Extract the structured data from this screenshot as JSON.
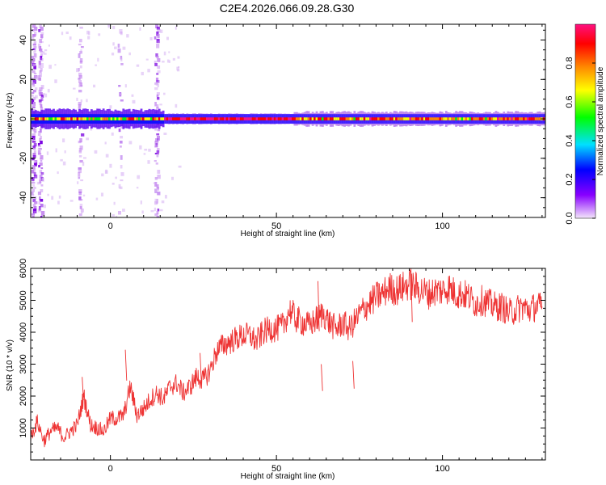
{
  "title": "C2E4.2026.066.09.28.G30",
  "chart_data": [
    {
      "type": "heatmap",
      "xlabel": "Height of straight line (km)",
      "ylabel": "Frequency (Hz)",
      "xlim": [
        -24,
        131
      ],
      "ylim": [
        -50,
        48
      ],
      "xticks": [
        0,
        50,
        100
      ],
      "yticks": [
        -40,
        -20,
        0,
        20,
        40
      ],
      "colorbar": {
        "label": "Normalized spectral amplitude",
        "range": [
          0,
          1
        ],
        "ticks": [
          "0.0",
          "0.2",
          "0.4",
          "0.6",
          "0.8"
        ],
        "colormap": [
          "#f0e0f8",
          "#8800ff",
          "#0000ff",
          "#00e0ff",
          "#00ff00",
          "#ffff00",
          "#ff8800",
          "#ff0000",
          "#ff1080"
        ]
      },
      "features": {
        "main_band_center_hz": 0,
        "main_band_halfwidth_hz": 2,
        "noisy_columns_km": [
          -23,
          -21,
          -9,
          3,
          14
        ]
      }
    },
    {
      "type": "line",
      "xlabel": "Height of straight line (km)",
      "ylabel": "SNR (10 * v/v)",
      "xlim": [
        -24,
        131
      ],
      "ylim": [
        0,
        6000
      ],
      "xticks": [
        0,
        50,
        100
      ],
      "yticks": [
        1000,
        2000,
        3000,
        4000,
        5000,
        6000
      ],
      "color": "#ee3333",
      "series": [
        {
          "x": [
            -24,
            -22,
            -20,
            -18,
            -16,
            -14,
            -12,
            -10,
            -8,
            -6,
            -4,
            -2,
            0,
            2,
            4,
            6,
            8,
            10,
            12,
            14,
            16,
            18,
            20,
            22,
            24,
            26,
            28,
            30,
            32,
            34,
            36,
            38,
            40,
            42,
            44,
            46,
            48,
            50,
            52,
            54,
            56,
            58,
            60,
            62,
            64,
            66,
            68,
            70,
            72,
            74,
            76,
            78,
            80,
            82,
            84,
            86,
            88,
            90,
            92,
            94,
            96,
            98,
            100,
            102,
            104,
            106,
            108,
            110,
            112,
            114,
            116,
            118,
            120,
            122,
            124,
            126,
            128,
            130
          ],
          "y": [
            700,
            1200,
            600,
            900,
            1000,
            700,
            900,
            1100,
            2000,
            1100,
            1000,
            900,
            1300,
            1300,
            1400,
            2300,
            1400,
            1600,
            1900,
            2100,
            1900,
            2300,
            2400,
            2100,
            2300,
            2600,
            2500,
            2800,
            3400,
            3600,
            3700,
            3800,
            3900,
            3900,
            3700,
            4000,
            4100,
            4100,
            4200,
            4700,
            4400,
            4300,
            4200,
            4400,
            4600,
            4300,
            4100,
            4300,
            4100,
            4400,
            4700,
            4900,
            5100,
            5200,
            5400,
            5300,
            5400,
            5500,
            5400,
            5300,
            5200,
            5300,
            5300,
            5400,
            5200,
            5200,
            5100,
            4900,
            5000,
            4900,
            4800,
            4800,
            4600,
            4700,
            4800,
            4700,
            4800,
            4800
          ]
        }
      ]
    }
  ]
}
